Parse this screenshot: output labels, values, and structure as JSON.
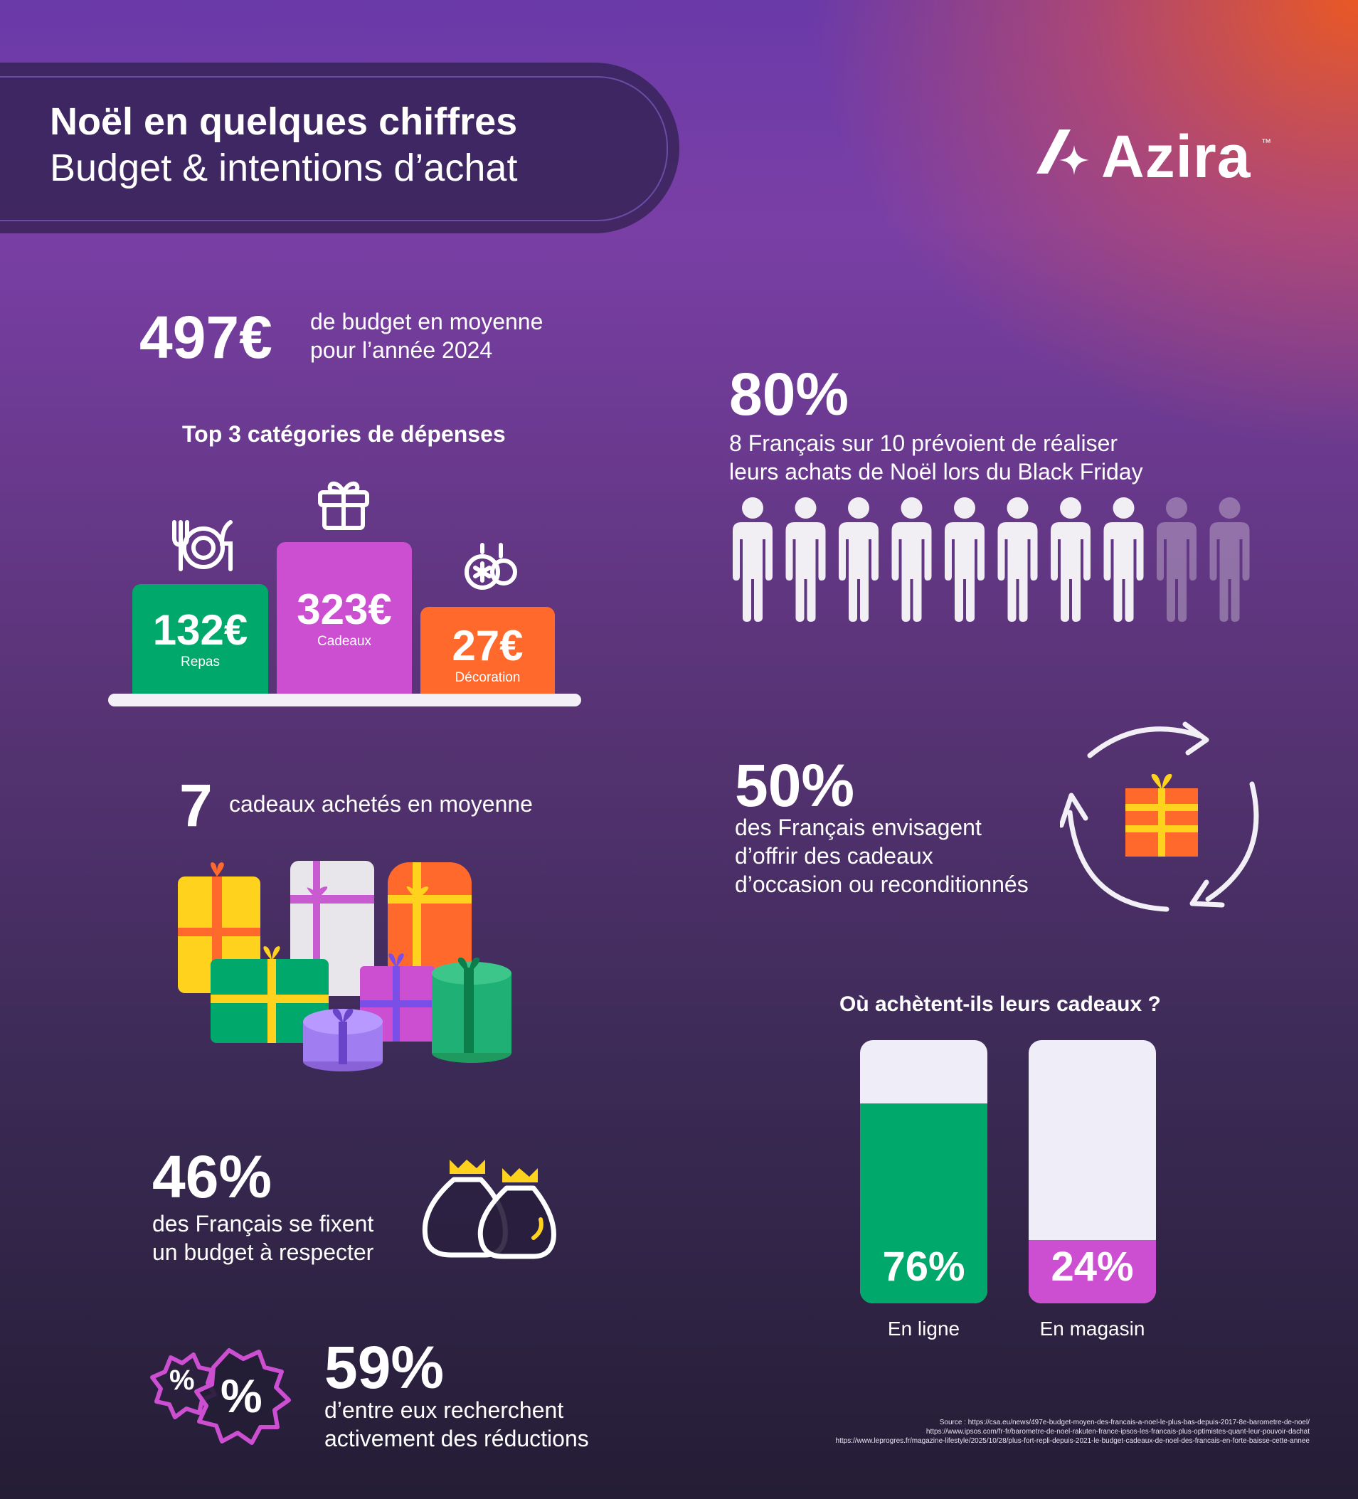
{
  "header": {
    "title": "Noël en quelques chiffres",
    "subtitle": "Budget & intentions d’achat"
  },
  "logo": {
    "text": "Azira",
    "tm": "™"
  },
  "budget": {
    "value": "497€",
    "text_line1": "de budget en moyenne",
    "text_line2": "pour l’année 2024"
  },
  "top3": {
    "title": "Top 3 catégories de dépenses",
    "items": [
      {
        "value": "132€",
        "label": "Repas",
        "icon": "plate-cutlery-icon",
        "color": "#00a86b"
      },
      {
        "value": "323€",
        "label": "Cadeaux",
        "icon": "gift-icon",
        "color": "#cc4fd1"
      },
      {
        "value": "27€",
        "label": "Décoration",
        "icon": "ornament-icon",
        "color": "#ff6a2c"
      }
    ]
  },
  "gifts_count": {
    "value": "7",
    "text": "cadeaux achetés en moyenne"
  },
  "budget_fixed": {
    "value": "46%",
    "text_line1": "des Français se fixent",
    "text_line2": "un budget à respecter",
    "icon": "money-bags-icon"
  },
  "discounts": {
    "value": "59%",
    "text_line1": "d’entre eux recherchent",
    "text_line2": "activement des réductions",
    "icon": "discount-badges-icon"
  },
  "black_friday": {
    "value": "80%",
    "text_line1": "8 Français sur 10 prévoient de réaliser",
    "text_line2": "leurs achats de Noël lors du Black Friday",
    "people_total": 10,
    "people_highlighted": 8
  },
  "second_hand": {
    "value": "50%",
    "text_line1": "des Français envisagent",
    "text_line2": "d’offrir des cadeaux",
    "text_line3": "d’occasion ou reconditionnés",
    "icon": "recycle-gift-icon"
  },
  "where": {
    "title": "Où achètent-ils leurs cadeaux ?",
    "bars": [
      {
        "value": "76%",
        "fraction": 0.76,
        "label": "En ligne",
        "color": "#00a86b"
      },
      {
        "value": "24%",
        "fraction": 0.24,
        "label": "En magasin",
        "color": "#cc4fd1"
      }
    ]
  },
  "sources": {
    "line1": "Source : https://csa.eu/news/497e-budget-moyen-des-francais-a-noel-le-plus-bas-depuis-2017-8e-barometre-de-noel/",
    "line2": "https://www.ipsos.com/fr-fr/barometre-de-noel-rakuten-france-ipsos-les-francais-plus-optimistes-quant-leur-pouvoir-dachat",
    "line3": "https://www.leprogres.fr/magazine-lifestyle/2025/10/28/plus-fort-repli-depuis-2021-le-budget-cadeaux-de-noel-des-francais-en-forte-baisse-cette-annee"
  },
  "colors": {
    "green": "#00a86b",
    "magenta": "#cc4fd1",
    "orange": "#ff6a2c",
    "yellow": "#ffd21e",
    "bar_bg": "#efedf8"
  }
}
